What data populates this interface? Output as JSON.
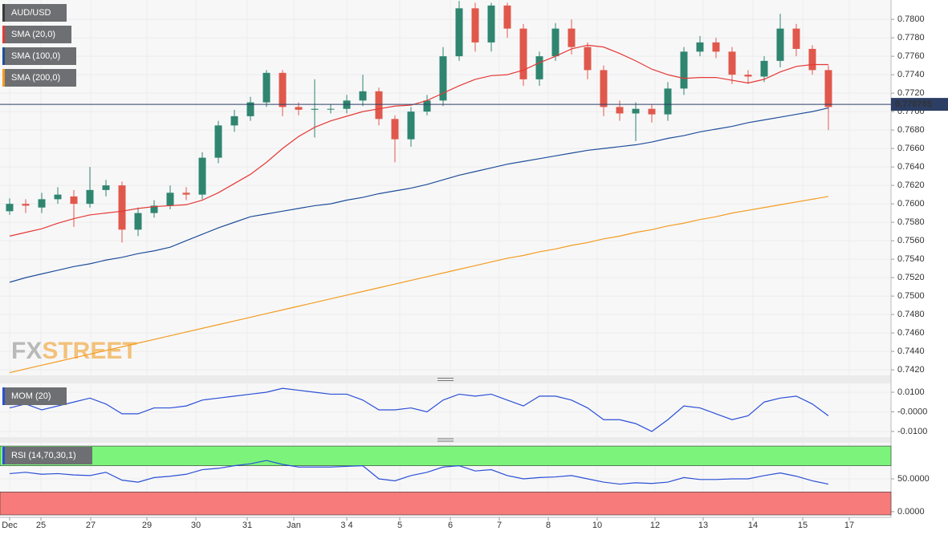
{
  "chart_data": [
    {
      "type": "candlestick",
      "title": "AUD/USD",
      "xlim": [
        -0.6,
        54.9
      ],
      "xticks": [
        {
          "value": 0,
          "label": "Dec"
        },
        {
          "value": 1.95,
          "label": "25"
        },
        {
          "value": 5.05,
          "label": "27"
        },
        {
          "value": 8.55,
          "label": "29"
        },
        {
          "value": 11.6,
          "label": "30"
        },
        {
          "value": 14.8,
          "label": "31"
        },
        {
          "value": 17.7,
          "label": "Jan"
        },
        {
          "value": 21,
          "label": "3 4"
        },
        {
          "value": 24.3,
          "label": "5"
        },
        {
          "value": 27.45,
          "label": "6"
        },
        {
          "value": 30.5,
          "label": "7"
        },
        {
          "value": 33.55,
          "label": "8"
        },
        {
          "value": 36.6,
          "label": "10"
        },
        {
          "value": 40.2,
          "label": "12"
        },
        {
          "value": 43.2,
          "label": "13"
        },
        {
          "value": 46.3,
          "label": "14"
        },
        {
          "value": 49.4,
          "label": "15"
        },
        {
          "value": 52.3,
          "label": "17"
        }
      ],
      "ylim": [
        0.7414,
        0.7821
      ],
      "yticks": [
        {
          "value": 0.78,
          "label": "0.7800"
        },
        {
          "value": 0.778,
          "label": "0.7780"
        },
        {
          "value": 0.776,
          "label": "0.7760"
        },
        {
          "value": 0.774,
          "label": "0.7740"
        },
        {
          "value": 0.772,
          "label": "0.7720"
        },
        {
          "value": 0.77,
          "label": "0.7700"
        },
        {
          "value": 0.768,
          "label": "0.7680"
        },
        {
          "value": 0.766,
          "label": "0.7660"
        },
        {
          "value": 0.764,
          "label": "0.7640"
        },
        {
          "value": 0.762,
          "label": "0.7620"
        },
        {
          "value": 0.76,
          "label": "0.7600"
        },
        {
          "value": 0.758,
          "label": "0.7580"
        },
        {
          "value": 0.756,
          "label": "0.7560"
        },
        {
          "value": 0.754,
          "label": "0.7540"
        },
        {
          "value": 0.752,
          "label": "0.7520"
        },
        {
          "value": 0.75,
          "label": "0.7500"
        },
        {
          "value": 0.748,
          "label": "0.7480"
        },
        {
          "value": 0.746,
          "label": "0.7460"
        },
        {
          "value": 0.744,
          "label": "0.7440"
        },
        {
          "value": 0.742,
          "label": "0.7420"
        }
      ],
      "last_price": 0.770785,
      "watermark": [
        "FX",
        "STREET"
      ],
      "up_color": "#2f8570",
      "down_color": "#e0584c",
      "candles": {
        "open": [
          0.7592,
          0.76,
          0.7596,
          0.7605,
          0.7608,
          0.76,
          0.7615,
          0.762,
          0.7572,
          0.759,
          0.7598,
          0.7612,
          0.761,
          0.765,
          0.7685,
          0.7695,
          0.771,
          0.7742,
          0.7705,
          0.7702,
          0.7703,
          0.7703,
          0.7712,
          0.7722,
          0.7692,
          0.767,
          0.77,
          0.7712,
          0.776,
          0.7812,
          0.7775,
          0.7815,
          0.779,
          0.7735,
          0.776,
          0.779,
          0.777,
          0.7745,
          0.7705,
          0.7698,
          0.7703,
          0.7697,
          0.7725,
          0.7765,
          0.7775,
          0.7765,
          0.774,
          0.7738,
          0.7755,
          0.779,
          0.7768,
          0.7745
        ],
        "high": [
          0.7606,
          0.7605,
          0.7612,
          0.7618,
          0.7615,
          0.764,
          0.7626,
          0.7624,
          0.7596,
          0.7604,
          0.762,
          0.7618,
          0.7656,
          0.769,
          0.7702,
          0.7716,
          0.7745,
          0.7745,
          0.771,
          0.7735,
          0.7708,
          0.7718,
          0.774,
          0.7726,
          0.7696,
          0.7705,
          0.7718,
          0.777,
          0.782,
          0.7818,
          0.7818,
          0.7818,
          0.7795,
          0.7765,
          0.7796,
          0.78,
          0.7775,
          0.775,
          0.7712,
          0.771,
          0.7708,
          0.7732,
          0.777,
          0.7782,
          0.778,
          0.777,
          0.7745,
          0.776,
          0.7806,
          0.7795,
          0.7772,
          0.775
        ],
        "low": [
          0.7588,
          0.759,
          0.759,
          0.76,
          0.7575,
          0.7596,
          0.7608,
          0.7558,
          0.7565,
          0.7585,
          0.7594,
          0.7604,
          0.7605,
          0.7644,
          0.7678,
          0.769,
          0.7705,
          0.7695,
          0.7696,
          0.7672,
          0.7698,
          0.7698,
          0.7706,
          0.7685,
          0.7645,
          0.7662,
          0.7696,
          0.7706,
          0.7755,
          0.7765,
          0.7765,
          0.778,
          0.7728,
          0.7728,
          0.7755,
          0.7762,
          0.7735,
          0.7695,
          0.769,
          0.7668,
          0.7688,
          0.769,
          0.7718,
          0.776,
          0.7758,
          0.773,
          0.773,
          0.7732,
          0.7748,
          0.776,
          0.774,
          0.768
        ],
        "close": [
          0.76,
          0.7598,
          0.7605,
          0.761,
          0.76,
          0.7615,
          0.762,
          0.7572,
          0.759,
          0.7598,
          0.7612,
          0.761,
          0.765,
          0.7685,
          0.7695,
          0.771,
          0.7742,
          0.7705,
          0.7702,
          0.7703,
          0.7703,
          0.7712,
          0.7722,
          0.7692,
          0.767,
          0.77,
          0.7712,
          0.776,
          0.7812,
          0.7775,
          0.7815,
          0.779,
          0.7735,
          0.776,
          0.779,
          0.777,
          0.7745,
          0.7705,
          0.7698,
          0.7703,
          0.7697,
          0.7725,
          0.7765,
          0.7775,
          0.7765,
          0.774,
          0.7738,
          0.7755,
          0.779,
          0.7768,
          0.7745,
          0.7705
        ]
      },
      "series": [
        {
          "name": "SMA (20,0)",
          "color": "#e53935",
          "values": [
            0.7565,
            0.7569,
            0.7573,
            0.7579,
            0.7584,
            0.7588,
            0.759,
            0.7592,
            0.7595,
            0.7597,
            0.7598,
            0.7599,
            0.7604,
            0.7612,
            0.7622,
            0.7632,
            0.7645,
            0.766,
            0.7673,
            0.7683,
            0.769,
            0.7695,
            0.77,
            0.7703,
            0.7706,
            0.7707,
            0.7712,
            0.772,
            0.7728,
            0.7735,
            0.7739,
            0.774,
            0.7745,
            0.7753,
            0.776,
            0.7768,
            0.7772,
            0.777,
            0.7763,
            0.7755,
            0.7746,
            0.774,
            0.7736,
            0.7737,
            0.7737,
            0.7734,
            0.7731,
            0.7735,
            0.7743,
            0.7749,
            0.7751,
            0.7751
          ]
        },
        {
          "name": "SMA (100,0)",
          "color": "#1f4e99",
          "values": [
            0.7515,
            0.752,
            0.7524,
            0.7528,
            0.7532,
            0.7535,
            0.7539,
            0.7542,
            0.7546,
            0.7549,
            0.7553,
            0.756,
            0.7567,
            0.7574,
            0.758,
            0.7586,
            0.7589,
            0.7592,
            0.7595,
            0.7598,
            0.76,
            0.7604,
            0.7607,
            0.7611,
            0.7614,
            0.7617,
            0.7621,
            0.7626,
            0.7631,
            0.7635,
            0.7639,
            0.7643,
            0.7646,
            0.7649,
            0.7652,
            0.7655,
            0.7658,
            0.766,
            0.7662,
            0.7664,
            0.7667,
            0.7671,
            0.7674,
            0.7678,
            0.7681,
            0.7684,
            0.7688,
            0.7691,
            0.7694,
            0.7697,
            0.77,
            0.7704
          ]
        },
        {
          "name": "SMA (200,0)",
          "color": "#f39c1f",
          "values": [
            0.7417,
            0.7421,
            0.7425,
            0.7429,
            0.7433,
            0.7437,
            0.7441,
            0.7445,
            0.7449,
            0.7453,
            0.7457,
            0.7461,
            0.7465,
            0.7469,
            0.7473,
            0.7477,
            0.7481,
            0.7485,
            0.7489,
            0.7493,
            0.7497,
            0.7501,
            0.7505,
            0.7509,
            0.7513,
            0.7517,
            0.7521,
            0.7525,
            0.7529,
            0.7533,
            0.7537,
            0.7541,
            0.7544,
            0.7548,
            0.7551,
            0.7555,
            0.7558,
            0.7562,
            0.7565,
            0.7569,
            0.7572,
            0.7576,
            0.7579,
            0.7583,
            0.7586,
            0.759,
            0.7593,
            0.7596,
            0.7599,
            0.7602,
            0.7605,
            0.7608
          ]
        }
      ]
    },
    {
      "type": "line",
      "title": "MOM (20)",
      "color": "#2b4fd6",
      "ylim": [
        -0.0129,
        0.0145
      ],
      "yticks": [
        {
          "value": 0.01,
          "label": "0.0100"
        },
        {
          "value": 0,
          "label": "-0.0000"
        },
        {
          "value": -0.01,
          "label": "-0.0100"
        }
      ],
      "values": [
        0.002,
        0.004,
        0.001,
        0.003,
        0.005,
        0.007,
        0.004,
        -0.001,
        -0.001,
        0.002,
        0.002,
        0.003,
        0.006,
        0.007,
        0.008,
        0.009,
        0.01,
        0.012,
        0.011,
        0.01,
        0.009,
        0.009,
        0.006,
        0.001,
        0.001,
        0.002,
        0,
        0.006,
        0.009,
        0.008,
        0.009,
        0.006,
        0.003,
        0.008,
        0.008,
        0.006,
        0.002,
        -0.004,
        -0.004,
        -0.006,
        -0.01,
        -0.004,
        0.003,
        0.002,
        -0.001,
        -0.004,
        -0.002,
        0.005,
        0.007,
        0.008,
        0.004,
        -0.002
      ]
    },
    {
      "type": "line",
      "title": "RSI (14,70,30,1)",
      "color": "#2b4fd6",
      "overbought": 70,
      "oversold": 30,
      "band_top": 100,
      "overbought_color": "#7cf47c",
      "oversold_color": "#f77b7b",
      "ylim": [
        -5,
        105
      ],
      "yticks": [
        {
          "value": 50,
          "label": "50.0000"
        },
        {
          "value": 0,
          "label": "0.0000"
        }
      ],
      "values": [
        58,
        60,
        57,
        58,
        56,
        55,
        60,
        48,
        45,
        52,
        54,
        57,
        64,
        66,
        70,
        73,
        78,
        72,
        68,
        68,
        68,
        69,
        70,
        50,
        47,
        55,
        60,
        68,
        70,
        62,
        64,
        55,
        50,
        52,
        53,
        55,
        50,
        45,
        42,
        44,
        43,
        45,
        52,
        49,
        49,
        50,
        50,
        55,
        59,
        54,
        47,
        42
      ]
    }
  ]
}
